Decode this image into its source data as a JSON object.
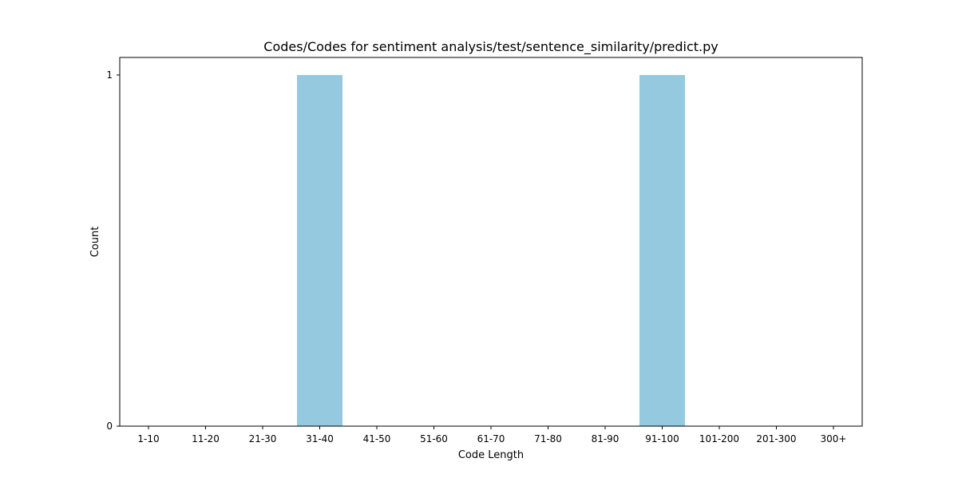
{
  "chart_data": {
    "type": "bar",
    "title": "Codes/Codes for sentiment analysis/test/sentence_similarity/predict.py",
    "xlabel": "Code Length",
    "ylabel": "Count",
    "categories": [
      "1-10",
      "11-20",
      "21-30",
      "31-40",
      "41-50",
      "51-60",
      "61-70",
      "71-80",
      "81-90",
      "91-100",
      "101-200",
      "201-300",
      "300+"
    ],
    "values": [
      0,
      0,
      0,
      1,
      0,
      0,
      0,
      0,
      0,
      1,
      0,
      0,
      0
    ],
    "yticks": [
      "0",
      "1"
    ],
    "ylim": [
      0,
      1.05
    ],
    "grid": false,
    "bar_color": "#95c9df"
  }
}
